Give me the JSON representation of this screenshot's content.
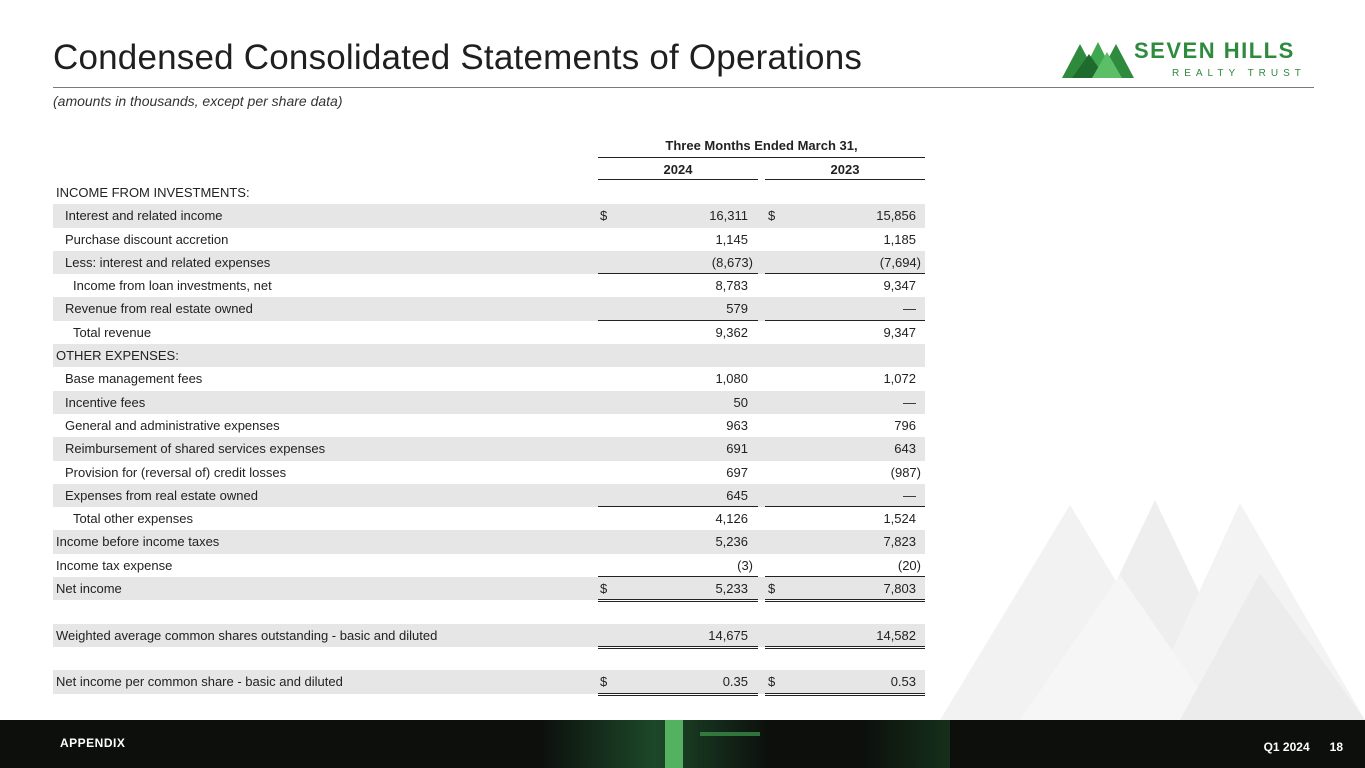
{
  "header": {
    "title": "Condensed Consolidated Statements of Operations",
    "subtitle": "(amounts in thousands, except per share data)"
  },
  "logo": {
    "name": "SEVEN HILLS",
    "tagline": "REALTY TRUST",
    "color": "#2e8b3e"
  },
  "table": {
    "period_header": "Three Months Ended March 31,",
    "years": [
      "2024",
      "2023"
    ],
    "rows": [
      {
        "label": "INCOME FROM INVESTMENTS:",
        "indent": 0,
        "shaded": false,
        "cur1": "",
        "v1": "",
        "cur2": "",
        "v2": "",
        "rule": ""
      },
      {
        "label": "Interest and related income",
        "indent": 1,
        "shaded": true,
        "cur1": "$",
        "v1": "16,311",
        "cur2": "$",
        "v2": "15,856",
        "rule": ""
      },
      {
        "label": "Purchase discount accretion",
        "indent": 1,
        "shaded": false,
        "cur1": "",
        "v1": "1,145",
        "cur2": "",
        "v2": "1,185",
        "rule": ""
      },
      {
        "label": "Less: interest and related expenses",
        "indent": 1,
        "shaded": true,
        "cur1": "",
        "v1": "(8,673)",
        "cur2": "",
        "v2": "(7,694)",
        "rule": "single"
      },
      {
        "label": "Income from loan investments, net",
        "indent": 2,
        "shaded": false,
        "cur1": "",
        "v1": "8,783",
        "cur2": "",
        "v2": "9,347",
        "rule": ""
      },
      {
        "label": "Revenue from real estate owned",
        "indent": 1,
        "shaded": true,
        "cur1": "",
        "v1": "579",
        "cur2": "",
        "v2": "—",
        "rule": "single"
      },
      {
        "label": "Total revenue",
        "indent": 2,
        "shaded": false,
        "cur1": "",
        "v1": "9,362",
        "cur2": "",
        "v2": "9,347",
        "rule": ""
      },
      {
        "label": "OTHER EXPENSES:",
        "indent": 0,
        "shaded": true,
        "cur1": "",
        "v1": "",
        "cur2": "",
        "v2": "",
        "rule": ""
      },
      {
        "label": "Base management fees",
        "indent": 1,
        "shaded": false,
        "cur1": "",
        "v1": "1,080",
        "cur2": "",
        "v2": "1,072",
        "rule": ""
      },
      {
        "label": "Incentive fees",
        "indent": 1,
        "shaded": true,
        "cur1": "",
        "v1": "50",
        "cur2": "",
        "v2": "—",
        "rule": ""
      },
      {
        "label": "General and administrative expenses",
        "indent": 1,
        "shaded": false,
        "cur1": "",
        "v1": "963",
        "cur2": "",
        "v2": "796",
        "rule": ""
      },
      {
        "label": "Reimbursement of shared services expenses",
        "indent": 1,
        "shaded": true,
        "cur1": "",
        "v1": "691",
        "cur2": "",
        "v2": "643",
        "rule": ""
      },
      {
        "label": "Provision for (reversal of) credit losses",
        "indent": 1,
        "shaded": false,
        "cur1": "",
        "v1": "697",
        "cur2": "",
        "v2": "(987)",
        "rule": ""
      },
      {
        "label": "Expenses from real estate owned",
        "indent": 1,
        "shaded": true,
        "cur1": "",
        "v1": "645",
        "cur2": "",
        "v2": "—",
        "rule": "single"
      },
      {
        "label": "Total other expenses",
        "indent": 2,
        "shaded": false,
        "cur1": "",
        "v1": "4,126",
        "cur2": "",
        "v2": "1,524",
        "rule": ""
      },
      {
        "label": "Income before income taxes",
        "indent": 0,
        "shaded": true,
        "cur1": "",
        "v1": "5,236",
        "cur2": "",
        "v2": "7,823",
        "rule": ""
      },
      {
        "label": "Income tax expense",
        "indent": 0,
        "shaded": false,
        "cur1": "",
        "v1": "(3)",
        "cur2": "",
        "v2": "(20)",
        "rule": "single"
      },
      {
        "label": "Net income",
        "indent": 0,
        "shaded": true,
        "cur1": "$",
        "v1": "5,233",
        "cur2": "$",
        "v2": "7,803",
        "rule": "double"
      },
      {
        "label": "",
        "indent": 0,
        "shaded": false,
        "cur1": "",
        "v1": "",
        "cur2": "",
        "v2": "",
        "rule": ""
      },
      {
        "label": "Weighted average common shares outstanding - basic and diluted",
        "indent": 0,
        "shaded": true,
        "cur1": "",
        "v1": "14,675",
        "cur2": "",
        "v2": "14,582",
        "rule": "double"
      },
      {
        "label": "",
        "indent": 0,
        "shaded": false,
        "cur1": "",
        "v1": "",
        "cur2": "",
        "v2": "",
        "rule": ""
      },
      {
        "label": "Net income per common share - basic and diluted",
        "indent": 0,
        "shaded": true,
        "cur1": "$",
        "v1": "0.35",
        "cur2": "$",
        "v2": "0.53",
        "rule": "double"
      }
    ]
  },
  "footer": {
    "section": "APPENDIX",
    "quarter": "Q1 2024",
    "page": "18"
  }
}
